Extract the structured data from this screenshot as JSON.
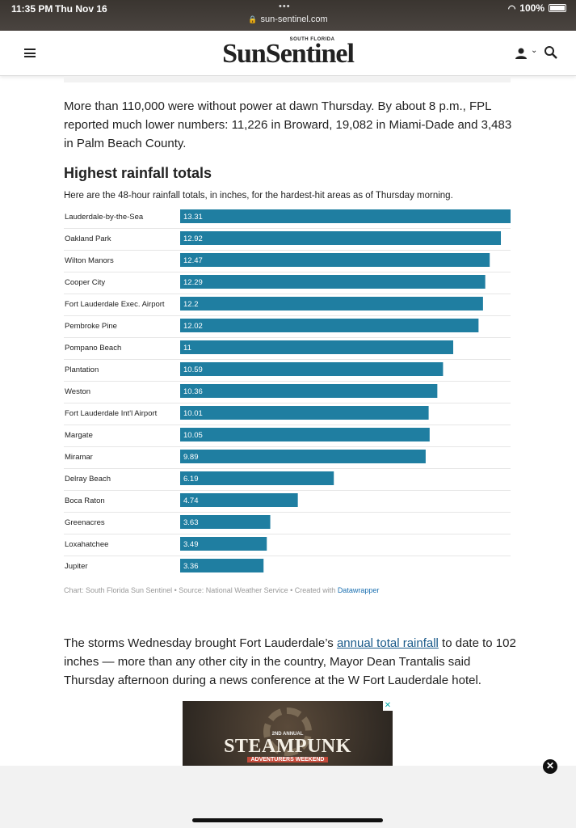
{
  "status_bar": {
    "time": "11:35 PM",
    "date": "Thu Nov 16",
    "url": "sun-sentinel.com",
    "battery": "100%"
  },
  "header": {
    "logo_small": "SOUTH FLORIDA",
    "logo_main": "SunSentinel"
  },
  "article": {
    "para1": "More than 110,000 were without power at dawn Thursday. By about 8 p.m., FPL reported much lower numbers: 11,226 in Broward, 19,082 in Miami-Dade and 3,483 in Palm Beach County.",
    "para2_before": "The storms Wednesday brought Fort Lauderdale’s ",
    "para2_link": "annual total rainfall",
    "para2_after": " to date to 102 inches — more than any other city in the country, Mayor Dean Trantalis said Thursday afternoon during a news conference at the W Fort Lauderdale hotel."
  },
  "chart_data": {
    "type": "bar",
    "orientation": "horizontal",
    "title": "Highest rainfall totals",
    "subtitle": "Here are the 48-hour rainfall totals, in inches, for the hardest-hit areas as of Thursday morning.",
    "categories": [
      "Lauderdale-by-the-Sea",
      "Oakland Park",
      "Wilton Manors",
      "Cooper City",
      "Fort Lauderdale Exec. Airport",
      "Pembroke Pine",
      "Pompano Beach",
      "Plantation",
      "Weston",
      "Fort Lauderdale Int'l Airport",
      "Margate",
      "Miramar",
      "Delray Beach",
      "Boca Raton",
      "Greenacres",
      "Loxahatchee",
      "Jupiter"
    ],
    "values": [
      13.31,
      12.92,
      12.47,
      12.29,
      12.2,
      12.02,
      11,
      10.59,
      10.36,
      10.01,
      10.05,
      9.89,
      6.19,
      4.74,
      3.63,
      3.49,
      3.36
    ],
    "value_labels": [
      "13.31",
      "12.92",
      "12.47",
      "12.29",
      "12.2",
      "12.02",
      "11",
      "10.59",
      "10.36",
      "10.01",
      "10.05",
      "9.89",
      "6.19",
      "4.74",
      "3.63",
      "3.49",
      "3.36"
    ],
    "xlim": [
      0,
      13.31
    ],
    "bar_color": "#1f7ea1",
    "grid": false,
    "footer_text": "Chart: South Florida Sun Sentinel • Source: National Weather Service • Created with ",
    "footer_link": "Datawrapper"
  },
  "ad": {
    "line1": "2ND ANNUAL",
    "main": "STEAMPUNK",
    "line2": "ADVENTURERS WEEKEND",
    "close_glyph": "✕"
  },
  "colors": {
    "bar": "#1f7ea1",
    "link": "#1a5a8a"
  }
}
